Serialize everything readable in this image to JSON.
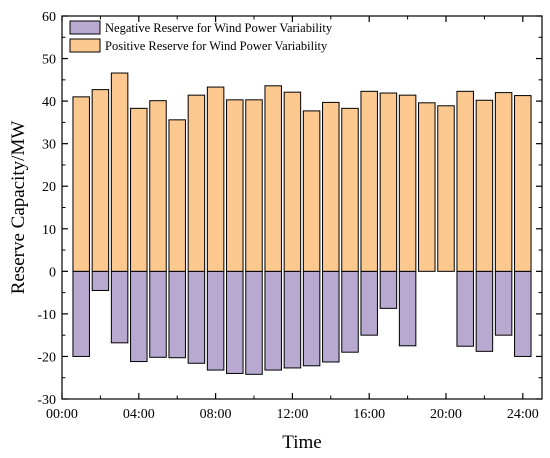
{
  "chart_data": {
    "type": "bar",
    "title": "",
    "xlabel": "Time",
    "ylabel": "Reserve Capacity/MW",
    "ylim": [
      -30,
      60
    ],
    "yticks": [
      -30,
      -20,
      -10,
      0,
      10,
      20,
      30,
      40,
      50,
      60
    ],
    "yticklabels": [
      "-30",
      "-20",
      "-10",
      "0",
      "10",
      "20",
      "30",
      "40",
      "50",
      "60"
    ],
    "xlim": [
      0,
      25
    ],
    "xticks": [
      0,
      4,
      8,
      12,
      16,
      20,
      24
    ],
    "xticklabels": [
      "00:00",
      "04:00",
      "08:00",
      "12:00",
      "16:00",
      "20:00",
      "24:00"
    ],
    "x": [
      1,
      2,
      3,
      4,
      5,
      6,
      7,
      8,
      9,
      10,
      11,
      12,
      13,
      14,
      15,
      16,
      17,
      18,
      19,
      20,
      21,
      22,
      23,
      24
    ],
    "series": [
      {
        "name": "Negative Reserve for Wind Power Variability",
        "color": "#b8a9d1",
        "values": [
          -20,
          -4.5,
          -16.8,
          -21.2,
          -20.2,
          -20.3,
          -21.6,
          -23.2,
          -24,
          -24.2,
          -23.2,
          -22.7,
          -22.2,
          -21.3,
          -19,
          -15,
          -8.7,
          -17.5,
          0,
          0,
          -17.6,
          -18.8,
          -15,
          -20
        ]
      },
      {
        "name": "Positive Reserve for Wind Power Variability",
        "color": "#fbc890",
        "values": [
          41,
          42.7,
          46.6,
          38.3,
          40.1,
          35.6,
          41.4,
          43.3,
          40.3,
          40.3,
          43.6,
          42.1,
          37.7,
          39.7,
          38.3,
          42.3,
          41.9,
          41.4,
          39.6,
          38.9,
          42.3,
          40.2,
          42,
          41.3
        ]
      }
    ],
    "legend_position": "top-left",
    "grid": false
  }
}
